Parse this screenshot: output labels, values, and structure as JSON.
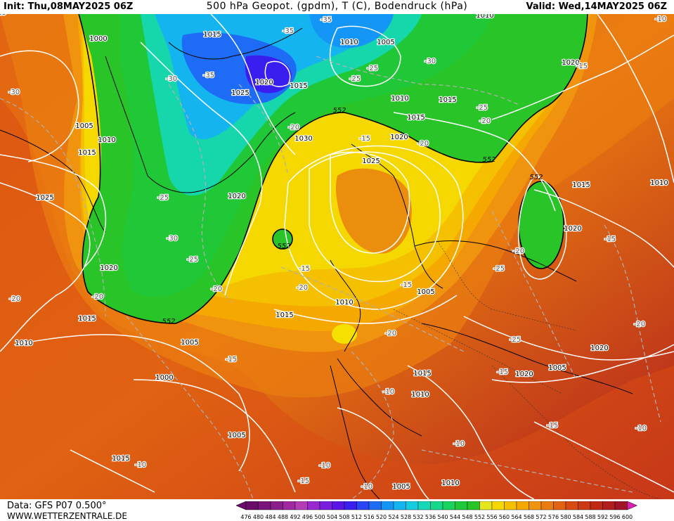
{
  "header": {
    "init": "Init: Thu,08MAY2025 06Z",
    "title": "500 hPa Geopot. (gpdm), T (C), Bodendruck (hPa)",
    "valid": "Valid: Wed,14MAY2025 06Z"
  },
  "footer": {
    "data_source": "Data: GFS P07 0.500°",
    "website": "WWW.WETTERZENTRALE.DE"
  },
  "colors": {
    "lowest": "#8a2f8a",
    "green": "#18c840",
    "yellow": "#f5d800",
    "orange": "#f08a10",
    "red": "#b81818",
    "isobar": "#ffffff",
    "coast": "#000000"
  },
  "colorbar": {
    "values": [
      "476",
      "480",
      "484",
      "488",
      "492",
      "496",
      "500",
      "504",
      "508",
      "512",
      "516",
      "520",
      "524",
      "528",
      "532",
      "536",
      "540",
      "544",
      "548",
      "552",
      "556",
      "560",
      "564",
      "568",
      "572",
      "576",
      "580",
      "584",
      "588",
      "592",
      "596",
      "600"
    ],
    "colors": [
      "#6a0a6a",
      "#7a147a",
      "#8a1e8a",
      "#a028a0",
      "#b43cb4",
      "#9a28d0",
      "#7a1ee0",
      "#5a14e6",
      "#3a1ef0",
      "#2a46f4",
      "#1e6cf6",
      "#1496f6",
      "#14b4f0",
      "#14cce0",
      "#14d8b8",
      "#14d88a",
      "#18d45c",
      "#1ec83a",
      "#28c428",
      "#e6e61e",
      "#f5d800",
      "#f5c000",
      "#f5a800",
      "#f09410",
      "#ea7c10",
      "#e26412",
      "#d84c14",
      "#cc3a14",
      "#c02a14",
      "#b01e1e",
      "#a01428",
      "#dc1eb4"
    ]
  },
  "contour_labels": {
    "pressure": [
      "1000",
      "1015",
      "1005",
      "1010",
      "1015",
      "1025",
      "1020",
      "1015",
      "1010",
      "1005",
      "1000",
      "1005",
      "1015",
      "1020",
      "1025",
      "1020",
      "1015",
      "1010",
      "1005",
      "1010",
      "1030",
      "1025",
      "1020",
      "1015",
      "1010",
      "1015",
      "1020",
      "1015",
      "1010",
      "1020",
      "1015",
      "1010",
      "1005",
      "1015",
      "1010",
      "1005",
      "1020",
      "1020",
      "1005",
      "1010",
      "1015",
      "1020",
      "1010",
      "1015",
      "1010",
      "1020",
      "1025",
      "1010",
      "1005"
    ],
    "temperature": [
      "-35",
      "-35",
      "-30",
      "-35",
      "-25",
      "-30",
      "-30",
      "-25",
      "-25",
      "-20",
      "-15",
      "-20",
      "-25",
      "-30",
      "-25",
      "-20",
      "-15",
      "-20",
      "-15",
      "-20",
      "-20",
      "-15",
      "-20",
      "-25",
      "-20",
      "-25",
      "-15",
      "-20",
      "-15",
      "-10",
      "-15",
      "-10",
      "-10",
      "-15",
      "-10",
      "-10",
      "-10",
      "-15",
      "-10",
      "-20",
      "-15",
      "-20",
      "-15"
    ],
    "height": [
      "552",
      "552",
      "552",
      "552",
      "552"
    ]
  }
}
